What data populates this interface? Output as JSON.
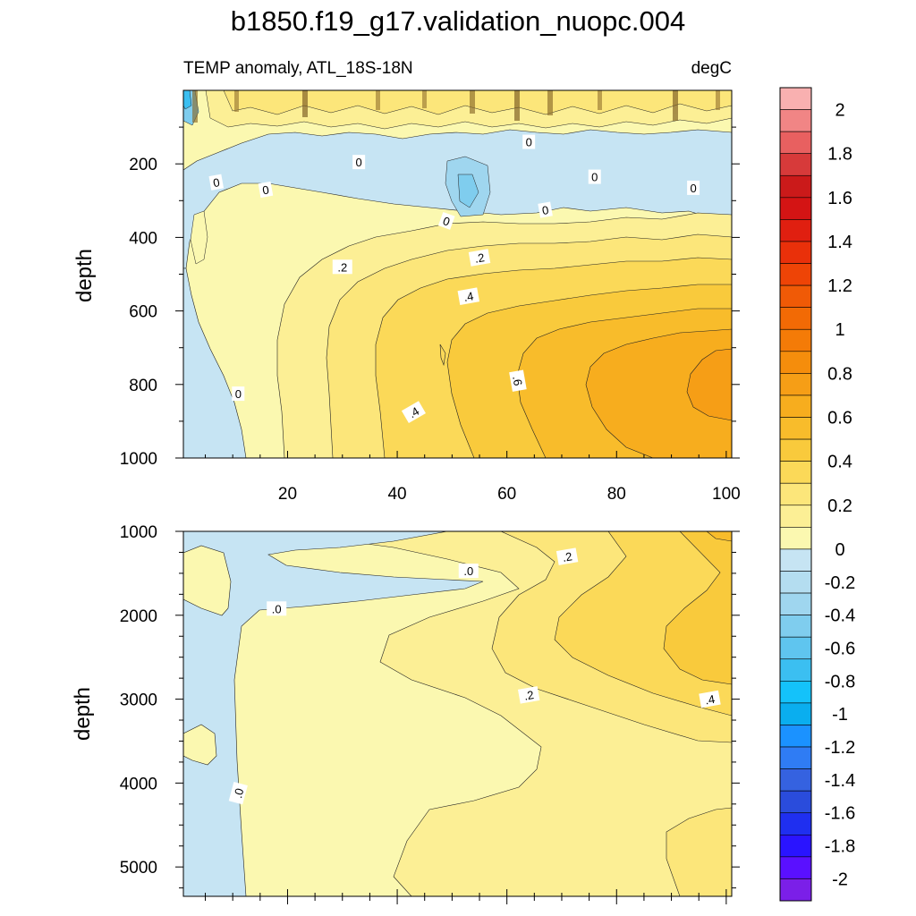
{
  "title": "b1850.f19_g17.validation_nuopc.004",
  "colors": {
    "ocean_light_blue": "#c6e4f3",
    "levels_negative": [
      "#7b1fe8",
      "#5a10ff",
      "#2a14ff",
      "#1f2ff0",
      "#2a4cdc",
      "#3562e0",
      "#2f7cf4",
      "#1b92ff",
      "#0aaeef",
      "#14c2fa",
      "#3bbff1",
      "#5fc5ef",
      "#7fcdee",
      "#9fd6ef",
      "#b4ddf0",
      "#c6e4f3"
    ],
    "levels_positive": [
      "#fbf8b0",
      "#fcef95",
      "#fce67a",
      "#fbd958",
      "#f9ca3c",
      "#f8bc2b",
      "#f7ad1e",
      "#f69e16",
      "#f58d0c",
      "#f47b07",
      "#f26a05",
      "#f05a06",
      "#ee4406",
      "#e9300a",
      "#e01f10",
      "#d41414",
      "#cb1a1a",
      "#d73a3a",
      "#e86060",
      "#f18585",
      "#f9b0b0"
    ]
  },
  "chart_data": [
    {
      "type": "contour",
      "panel": "upper",
      "title": "TEMP anomaly, ATL_18S-18N",
      "units_label": "degC",
      "ylabel": "depth",
      "xlabel": "",
      "xlim": [
        1,
        101
      ],
      "ylim": [
        1000,
        0
      ],
      "x_ticks": [
        "20",
        "40",
        "60",
        "80",
        "100"
      ],
      "x_tick_values": [
        20,
        40,
        60,
        80,
        100
      ],
      "y_ticks": [
        "200",
        "400",
        "600",
        "800",
        "1000"
      ],
      "y_tick_values": [
        200,
        400,
        600,
        800,
        1000
      ],
      "contour_labels": [
        {
          "text": "0",
          "x": 7,
          "y": 250,
          "angle": -10
        },
        {
          "text": "0",
          "x": 16,
          "y": 270,
          "angle": -10
        },
        {
          "text": "0",
          "x": 33,
          "y": 195,
          "angle": 0
        },
        {
          "text": "0",
          "x": 49,
          "y": 355,
          "angle": 20
        },
        {
          "text": "0",
          "x": 64,
          "y": 140,
          "angle": 0
        },
        {
          "text": "0",
          "x": 67,
          "y": 325,
          "angle": -10
        },
        {
          "text": "0",
          "x": 76,
          "y": 235,
          "angle": 0
        },
        {
          "text": "0",
          "x": 94,
          "y": 265,
          "angle": 0
        },
        {
          "text": ".2",
          "x": 30,
          "y": 480,
          "angle": 0
        },
        {
          "text": ".2",
          "x": 55,
          "y": 455,
          "angle": -10
        },
        {
          "text": ".4",
          "x": 53,
          "y": 560,
          "angle": -10
        },
        {
          "text": ".6",
          "x": 62,
          "y": 790,
          "angle": 80
        },
        {
          "text": ".4",
          "x": 43,
          "y": 875,
          "angle": -30
        },
        {
          "text": "0",
          "x": 11,
          "y": 825,
          "angle": 0
        }
      ]
    },
    {
      "type": "contour",
      "panel": "lower",
      "ylabel": "depth",
      "xlabel": "",
      "xlim": [
        1,
        101
      ],
      "ylim": [
        5350,
        1000
      ],
      "y_ticks": [
        "1000",
        "2000",
        "3000",
        "4000",
        "5000"
      ],
      "y_tick_values": [
        1000,
        2000,
        3000,
        4000,
        5000
      ],
      "contour_labels": [
        {
          "text": ".0",
          "x": 53,
          "y": 1470,
          "angle": 0
        },
        {
          "text": ".0",
          "x": 18,
          "y": 1920,
          "angle": 0
        },
        {
          "text": ".2",
          "x": 71,
          "y": 1300,
          "angle": -10
        },
        {
          "text": ".2",
          "x": 64,
          "y": 2950,
          "angle": -10
        },
        {
          "text": ".4",
          "x": 97,
          "y": 3000,
          "angle": -10
        },
        {
          "text": ".0",
          "x": 11,
          "y": 4120,
          "angle": -75
        }
      ]
    }
  ],
  "colorbar": {
    "labels": [
      "2",
      "1.8",
      "1.6",
      "1.4",
      "1.2",
      "1",
      "0.8",
      "0.6",
      "0.4",
      "0.2",
      "0",
      "-0.2",
      "-0.4",
      "-0.6",
      "-0.8",
      "-1",
      "-1.2",
      "-1.4",
      "-1.6",
      "-1.8",
      "-2"
    ],
    "values": [
      2,
      1.8,
      1.6,
      1.4,
      1.2,
      1,
      0.8,
      0.6,
      0.4,
      0.2,
      0,
      -0.2,
      -0.4,
      -0.6,
      -0.8,
      -1,
      -1.2,
      -1.4,
      -1.6,
      -1.8,
      -2
    ]
  }
}
